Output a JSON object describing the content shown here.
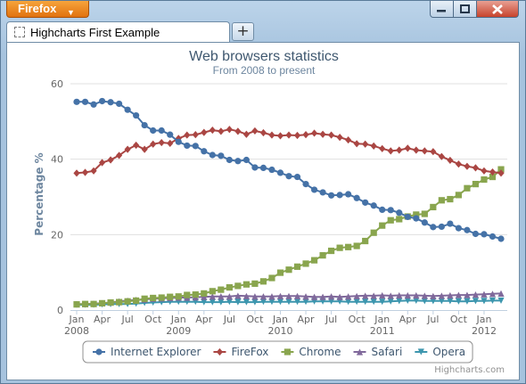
{
  "window": {
    "app_button_label": "Firefox",
    "minimize_glyph": "–",
    "close_glyph": "✕"
  },
  "tab": {
    "title": "Highcharts First Example",
    "new_tab_glyph": "+"
  },
  "colors": {
    "firefox_orange": "#e8820f",
    "ie": "#4572a7",
    "firefox": "#aa4643",
    "chrome": "#89a54e",
    "safari": "#80699b",
    "opera": "#3d96ae"
  },
  "credits": "Highcharts.com",
  "chart_data": {
    "type": "line",
    "title": "Web browsers statistics",
    "subtitle": "From 2008 to present",
    "ylabel": "Percentage %",
    "xlabel": "",
    "ylim": [
      0,
      60
    ],
    "yticks": [
      0,
      20,
      40,
      60
    ],
    "grid": true,
    "legend_position": "bottom-center",
    "x_start": "2008-01",
    "x_tick_labels": [
      {
        "month_index": 0,
        "label": "Jan",
        "year": "2008"
      },
      {
        "month_index": 3,
        "label": "Apr"
      },
      {
        "month_index": 6,
        "label": "Jul"
      },
      {
        "month_index": 9,
        "label": "Oct"
      },
      {
        "month_index": 12,
        "label": "Jan",
        "year": "2009"
      },
      {
        "month_index": 15,
        "label": "Apr"
      },
      {
        "month_index": 18,
        "label": "Jul"
      },
      {
        "month_index": 21,
        "label": "Oct"
      },
      {
        "month_index": 24,
        "label": "Jan",
        "year": "2010"
      },
      {
        "month_index": 27,
        "label": "Apr"
      },
      {
        "month_index": 30,
        "label": "Jul"
      },
      {
        "month_index": 33,
        "label": "Oct"
      },
      {
        "month_index": 36,
        "label": "Jan",
        "year": "2011"
      },
      {
        "month_index": 39,
        "label": "Apr"
      },
      {
        "month_index": 42,
        "label": "Jul"
      },
      {
        "month_index": 45,
        "label": "Oct"
      },
      {
        "month_index": 48,
        "label": "Jan",
        "year": "2012"
      }
    ],
    "series": [
      {
        "name": "Internet Explorer",
        "marker": "circle",
        "values": [
          55.2,
          55.2,
          54.5,
          55.4,
          55.1,
          54.7,
          53.1,
          51.6,
          49.0,
          47.6,
          47.6,
          46.5,
          44.6,
          43.6,
          43.5,
          42.1,
          41.1,
          40.9,
          39.8,
          39.5,
          39.8,
          37.8,
          37.7,
          37.2,
          36.4,
          35.5,
          35.3,
          33.4,
          31.9,
          31.2,
          30.4,
          30.5,
          30.7,
          29.7,
          28.5,
          27.7,
          26.6,
          26.5,
          25.8,
          24.7,
          24.3,
          23.2,
          22.0,
          22.1,
          22.9,
          21.7,
          21.2,
          20.2,
          20.1,
          19.5,
          18.9
        ]
      },
      {
        "name": "FireFox",
        "marker": "diamond",
        "values": [
          36.3,
          36.5,
          36.9,
          39.1,
          39.8,
          41.0,
          42.6,
          43.7,
          42.6,
          44.0,
          44.4,
          44.2,
          45.5,
          46.4,
          46.5,
          47.1,
          47.7,
          47.4,
          47.9,
          47.4,
          46.6,
          47.5,
          47.0,
          46.4,
          46.2,
          46.4,
          46.3,
          46.5,
          46.9,
          46.6,
          46.4,
          45.8,
          45.1,
          44.1,
          44.0,
          43.5,
          42.8,
          42.2,
          42.4,
          42.9,
          42.4,
          42.2,
          42.0,
          40.7,
          39.7,
          38.7,
          38.1,
          37.7,
          36.9,
          36.6,
          36.3
        ]
      },
      {
        "name": "Chrome",
        "marker": "square",
        "values": [
          1.5,
          1.6,
          1.6,
          1.8,
          2.0,
          2.1,
          2.3,
          2.5,
          3.0,
          3.2,
          3.3,
          3.5,
          3.6,
          4.0,
          4.1,
          4.4,
          5.0,
          5.4,
          6.0,
          6.4,
          6.8,
          7.0,
          7.6,
          8.5,
          9.9,
          10.7,
          11.5,
          12.3,
          13.2,
          14.5,
          15.7,
          16.5,
          16.7,
          17.0,
          18.3,
          20.5,
          22.4,
          23.8,
          24.1,
          24.8,
          25.3,
          25.5,
          27.3,
          29.1,
          29.4,
          30.5,
          32.3,
          33.4,
          34.6,
          35.3,
          37.3
        ]
      },
      {
        "name": "Safari",
        "marker": "triangle",
        "values": [
          1.6,
          1.6,
          1.7,
          1.8,
          2.0,
          2.3,
          2.5,
          2.7,
          2.8,
          3.0,
          3.1,
          3.2,
          3.3,
          3.3,
          3.4,
          3.5,
          3.6,
          3.6,
          3.6,
          3.8,
          3.7,
          3.6,
          3.6,
          3.6,
          3.7,
          3.7,
          3.7,
          3.6,
          3.5,
          3.5,
          3.6,
          3.5,
          3.6,
          3.7,
          3.8,
          3.8,
          3.9,
          3.8,
          3.9,
          3.9,
          3.9,
          3.8,
          3.7,
          3.8,
          3.9,
          4.0,
          4.0,
          4.1,
          4.2,
          4.3,
          4.4
        ]
      },
      {
        "name": "Opera",
        "marker": "triangle-down",
        "values": [
          1.4,
          1.4,
          1.4,
          1.5,
          1.6,
          1.6,
          1.6,
          1.7,
          1.9,
          2.0,
          2.1,
          2.2,
          2.2,
          2.2,
          2.2,
          2.1,
          2.1,
          2.1,
          2.2,
          2.1,
          2.1,
          2.1,
          2.2,
          2.2,
          2.2,
          2.2,
          2.2,
          2.2,
          2.3,
          2.3,
          2.3,
          2.3,
          2.2,
          2.2,
          2.2,
          2.2,
          2.2,
          2.3,
          2.4,
          2.5,
          2.5,
          2.4,
          2.4,
          2.4,
          2.4,
          2.3,
          2.3,
          2.4,
          2.4,
          2.5,
          2.5
        ]
      }
    ]
  }
}
